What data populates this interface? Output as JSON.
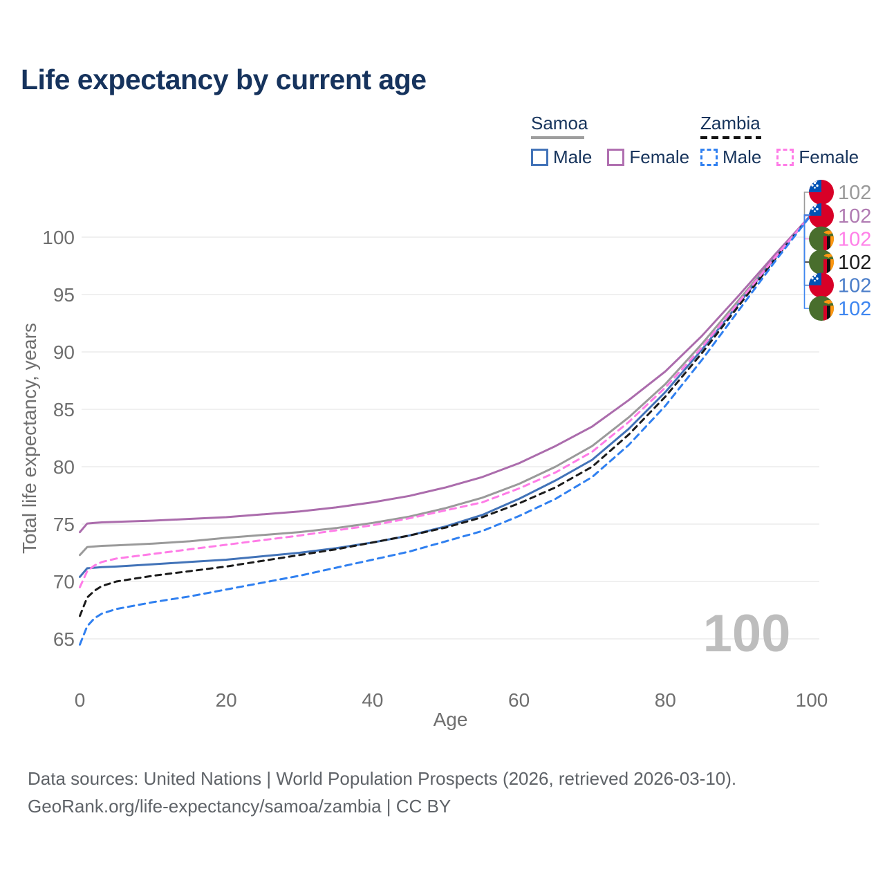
{
  "title": "Life expectancy by current age",
  "watermark": "100",
  "legend": {
    "groups": [
      {
        "name": "Samoa",
        "line_style": "solid",
        "underline_color": "#9e9e9e",
        "items": [
          {
            "label": "Male",
            "color": "#4273b8"
          },
          {
            "label": "Female",
            "color": "#b06fb0"
          }
        ]
      },
      {
        "name": "Zambia",
        "line_style": "dashed",
        "underline_color": "#141414",
        "items": [
          {
            "label": "Male",
            "color": "#3080f0"
          },
          {
            "label": "Female",
            "color": "#ff7ce7"
          }
        ]
      }
    ]
  },
  "footer": {
    "line1": "Data sources: United Nations | World Population Prospects (2026, retrieved 2026-03-10).",
    "line2": "GeoRank.org/life-expectancy/samoa/zambia | CC BY"
  },
  "chart_data": {
    "type": "line",
    "title": "Life expectancy by current age",
    "xlabel": "Age",
    "ylabel": "Total life expectancy, years",
    "xlim": [
      0,
      100
    ],
    "ylim": [
      63,
      103
    ],
    "xticks": [
      0,
      20,
      40,
      60,
      80,
      100
    ],
    "yticks": [
      65,
      70,
      75,
      80,
      85,
      90,
      95,
      100
    ],
    "grid": "horizontal",
    "legend_position": "top-right",
    "x": [
      0,
      1,
      2,
      3,
      5,
      10,
      15,
      20,
      25,
      30,
      35,
      40,
      45,
      50,
      55,
      60,
      65,
      70,
      75,
      80,
      85,
      90,
      95,
      100
    ],
    "series": [
      {
        "name": "Samoa",
        "sex": "both",
        "country": "samoa",
        "style": "solid",
        "color": "#9a9a9a",
        "dash": null,
        "values": [
          72.3,
          73.0,
          73.05,
          73.1,
          73.15,
          73.3,
          73.5,
          73.8,
          74.05,
          74.3,
          74.65,
          75.1,
          75.65,
          76.4,
          77.3,
          78.5,
          80.0,
          81.8,
          84.3,
          87.2,
          90.7,
          94.5,
          98.3,
          102
        ]
      },
      {
        "name": "Samoa Female",
        "sex": "female",
        "country": "samoa",
        "style": "solid",
        "color": "#ab6cac",
        "dash": null,
        "values": [
          74.3,
          75.05,
          75.1,
          75.15,
          75.2,
          75.3,
          75.45,
          75.6,
          75.85,
          76.1,
          76.45,
          76.9,
          77.45,
          78.2,
          79.1,
          80.3,
          81.8,
          83.5,
          85.8,
          88.3,
          91.4,
          94.9,
          98.5,
          102
        ]
      },
      {
        "name": "Samoa Male",
        "sex": "male",
        "country": "samoa",
        "style": "solid",
        "color": "#4273b8",
        "dash": null,
        "values": [
          70.4,
          71.15,
          71.2,
          71.25,
          71.3,
          71.5,
          71.7,
          71.9,
          72.2,
          72.5,
          72.9,
          73.4,
          74.0,
          74.8,
          75.8,
          77.2,
          78.8,
          80.6,
          83.3,
          86.5,
          90.2,
          94.2,
          98.2,
          102
        ]
      },
      {
        "name": "Zambia",
        "sex": "both",
        "country": "zambia",
        "style": "dashed",
        "color": "#1b1b1b",
        "dash": "8 7",
        "values": [
          67.0,
          68.6,
          69.2,
          69.6,
          70.0,
          70.5,
          70.9,
          71.3,
          71.8,
          72.3,
          72.8,
          73.4,
          74.0,
          74.7,
          75.6,
          76.8,
          78.2,
          80.0,
          82.8,
          86.1,
          89.9,
          94.0,
          98.1,
          102
        ]
      },
      {
        "name": "Zambia Female",
        "sex": "female",
        "country": "zambia",
        "style": "dashed",
        "color": "#ff7ce7",
        "dash": "9 7",
        "values": [
          69.5,
          70.9,
          71.4,
          71.7,
          72.0,
          72.4,
          72.8,
          73.2,
          73.6,
          74.0,
          74.45,
          74.9,
          75.5,
          76.2,
          76.9,
          78.1,
          79.5,
          81.3,
          83.9,
          86.9,
          90.4,
          94.3,
          98.25,
          102
        ]
      },
      {
        "name": "Zambia Male",
        "sex": "male",
        "country": "zambia",
        "style": "dashed",
        "color": "#3080f0",
        "dash": "9 7",
        "values": [
          64.5,
          66.1,
          66.8,
          67.2,
          67.6,
          68.2,
          68.7,
          69.3,
          69.9,
          70.5,
          71.2,
          71.9,
          72.6,
          73.5,
          74.4,
          75.7,
          77.2,
          79.1,
          81.9,
          85.3,
          89.3,
          93.6,
          97.9,
          102
        ]
      }
    ],
    "end_labels": [
      {
        "series": "Samoa",
        "flag": "samoa",
        "value": "102",
        "color": "#9a9a9a"
      },
      {
        "series": "Samoa Female",
        "flag": "samoa",
        "value": "102",
        "color": "#b07ab2"
      },
      {
        "series": "Zambia Female",
        "flag": "zambia",
        "value": "102",
        "color": "#ff80e8"
      },
      {
        "series": "Zambia",
        "flag": "zambia",
        "value": "102",
        "color": "#1c1c1c"
      },
      {
        "series": "Samoa Male",
        "flag": "samoa",
        "value": "102",
        "color": "#4a7dc9"
      },
      {
        "series": "Zambia Male",
        "flag": "zambia",
        "value": "102",
        "color": "#3e86f0"
      }
    ]
  }
}
